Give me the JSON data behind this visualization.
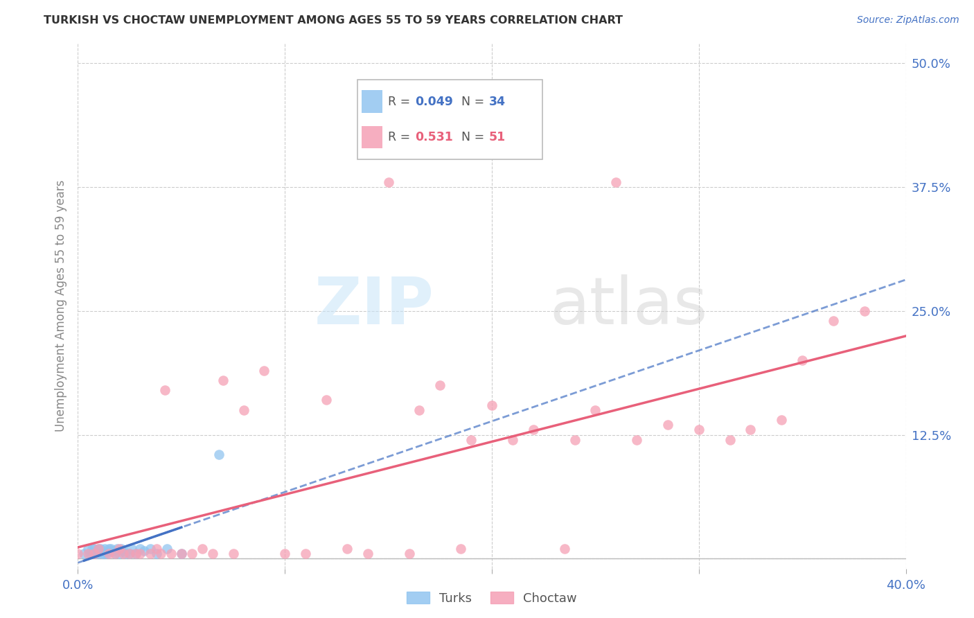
{
  "title": "TURKISH VS CHOCTAW UNEMPLOYMENT AMONG AGES 55 TO 59 YEARS CORRELATION CHART",
  "source": "Source: ZipAtlas.com",
  "ylabel": "Unemployment Among Ages 55 to 59 years",
  "xlim": [
    0.0,
    0.4
  ],
  "ylim": [
    -0.01,
    0.52
  ],
  "xticks": [
    0.0,
    0.1,
    0.2,
    0.3,
    0.4
  ],
  "xtick_labels": [
    "0.0%",
    "",
    "",
    "",
    "40.0%"
  ],
  "ytick_labels": [
    "",
    "12.5%",
    "25.0%",
    "37.5%",
    "50.0%"
  ],
  "yticks": [
    0.0,
    0.125,
    0.25,
    0.375,
    0.5
  ],
  "turks_color": "#92C5F0",
  "choctaw_color": "#F5A0B5",
  "trend_turks_color": "#4472C4",
  "trend_choctaw_color": "#E8607A",
  "right_label_color": "#4472C4",
  "turks_x": [
    0.003,
    0.005,
    0.006,
    0.007,
    0.007,
    0.008,
    0.009,
    0.01,
    0.01,
    0.011,
    0.012,
    0.013,
    0.013,
    0.014,
    0.015,
    0.015,
    0.016,
    0.017,
    0.018,
    0.019,
    0.02,
    0.021,
    0.022,
    0.023,
    0.025,
    0.026,
    0.028,
    0.03,
    0.032,
    0.035,
    0.038,
    0.043,
    0.05,
    0.068
  ],
  "turks_y": [
    0.005,
    0.01,
    0.005,
    0.01,
    0.005,
    0.01,
    0.005,
    0.005,
    0.01,
    0.01,
    0.005,
    0.005,
    0.01,
    0.005,
    0.008,
    0.01,
    0.01,
    0.008,
    0.005,
    0.01,
    0.005,
    0.01,
    0.008,
    0.005,
    0.005,
    0.01,
    0.005,
    0.01,
    0.008,
    0.01,
    0.005,
    0.01,
    0.005,
    0.105
  ],
  "choctaw_x": [
    0.0,
    0.005,
    0.008,
    0.01,
    0.015,
    0.018,
    0.02,
    0.022,
    0.025,
    0.028,
    0.03,
    0.035,
    0.038,
    0.04,
    0.042,
    0.045,
    0.05,
    0.055,
    0.06,
    0.065,
    0.07,
    0.075,
    0.08,
    0.09,
    0.1,
    0.11,
    0.12,
    0.13,
    0.14,
    0.15,
    0.16,
    0.165,
    0.175,
    0.185,
    0.19,
    0.2,
    0.21,
    0.22,
    0.235,
    0.24,
    0.25,
    0.26,
    0.27,
    0.285,
    0.3,
    0.315,
    0.325,
    0.34,
    0.35,
    0.365,
    0.38
  ],
  "choctaw_y": [
    0.005,
    0.005,
    0.005,
    0.01,
    0.005,
    0.005,
    0.01,
    0.005,
    0.005,
    0.005,
    0.005,
    0.005,
    0.01,
    0.005,
    0.17,
    0.005,
    0.005,
    0.005,
    0.01,
    0.005,
    0.18,
    0.005,
    0.15,
    0.19,
    0.005,
    0.005,
    0.16,
    0.01,
    0.005,
    0.38,
    0.005,
    0.15,
    0.175,
    0.01,
    0.12,
    0.155,
    0.12,
    0.13,
    0.01,
    0.12,
    0.15,
    0.38,
    0.12,
    0.135,
    0.13,
    0.12,
    0.13,
    0.14,
    0.2,
    0.24,
    0.25
  ],
  "turks_trend_x": [
    0.003,
    0.05
  ],
  "choctaw_trend_x": [
    0.0,
    0.4
  ]
}
